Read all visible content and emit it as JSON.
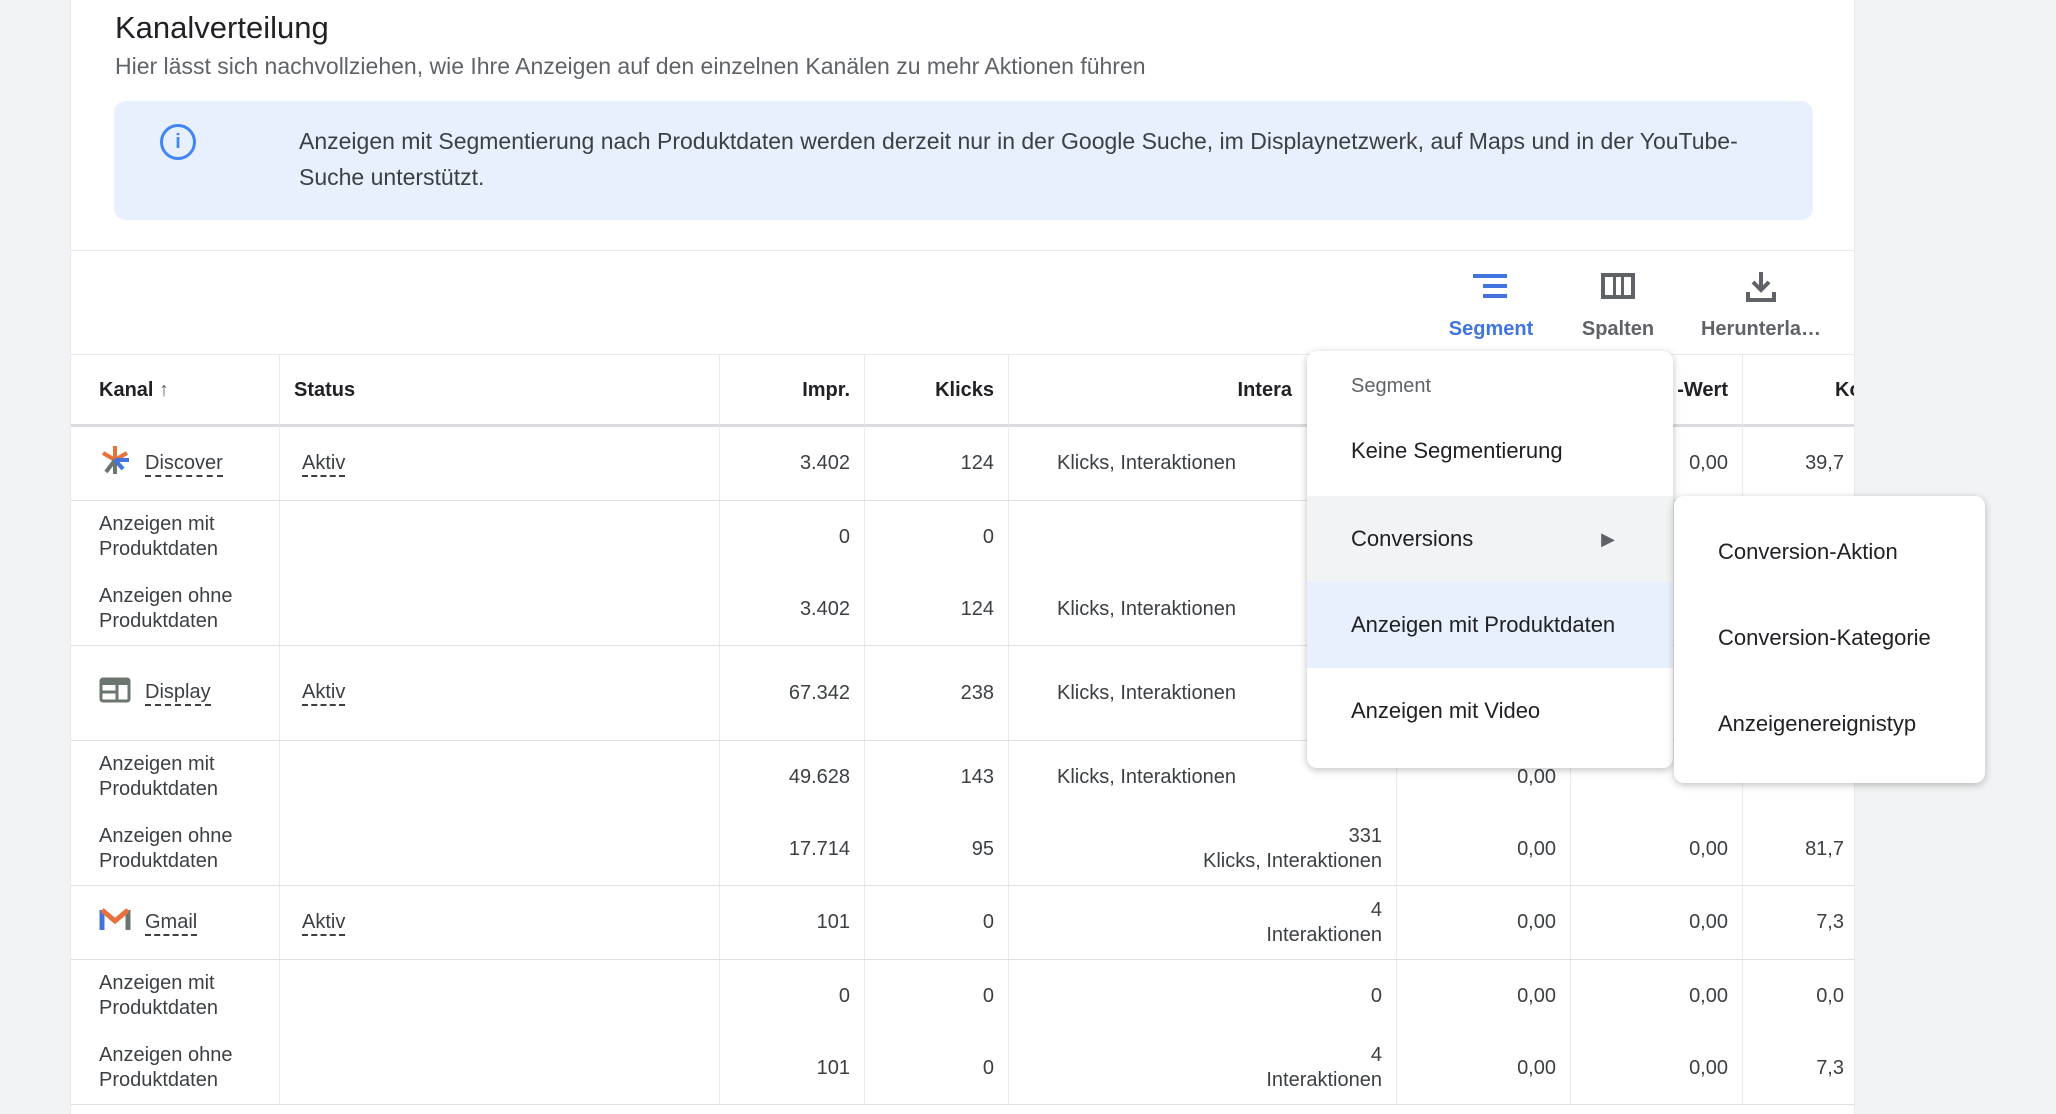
{
  "header": {
    "title": "Kanalverteilung",
    "subtitle": "Hier lässt sich nachvollziehen, wie Ihre Anzeigen auf den einzelnen Kanälen zu mehr Aktionen führen"
  },
  "info": {
    "icon": "info-icon",
    "text": "Anzeigen mit Segmentierung nach Produktdaten werden derzeit nur in der Google Suche, im Displaynetzwerk, auf Maps und in der YouTube-Suche unterstützt."
  },
  "toolbar": {
    "segment": "Segment",
    "columns": "Spalten",
    "download": "Herunterla…",
    "accent": "#4174de"
  },
  "table": {
    "headers": [
      "Kanal",
      "Status",
      "Impr.",
      "Klicks",
      "Intera",
      "",
      "-Wert",
      "Kos"
    ],
    "rows": [
      {
        "channel": "Discover",
        "icon": "discover-icon",
        "status": "Aktiv",
        "impr": "3.402",
        "klicks": "124",
        "inter_num": "",
        "inter_label": "Klicks, Interaktionen",
        "c6": "",
        "c7": "0,00",
        "kos": "39,7",
        "subs": [
          {
            "label": "Anzeigen mit Produktdaten",
            "impr": "0",
            "klicks": "0",
            "inter_num": "",
            "inter_label": "",
            "c6": "",
            "c7": "",
            "kos": ""
          },
          {
            "label": "Anzeigen ohne Produktdaten",
            "impr": "3.402",
            "klicks": "124",
            "inter_num": "",
            "inter_label": "Klicks, Interaktionen",
            "c6": "",
            "c7": "",
            "kos": ""
          }
        ]
      },
      {
        "channel": "Display",
        "icon": "display-icon",
        "status": "Aktiv",
        "impr": "67.342",
        "klicks": "238",
        "inter_num": "",
        "inter_label": "Klicks, Interaktionen",
        "c6": "",
        "c7": "",
        "kos": "",
        "subs": [
          {
            "label": "Anzeigen mit Produktdaten",
            "impr": "49.628",
            "klicks": "143",
            "inter_num": "",
            "inter_label": "Klicks, Interaktionen",
            "c6": "0,00",
            "c7": "",
            "kos": ""
          },
          {
            "label": "Anzeigen ohne Produktdaten",
            "impr": "17.714",
            "klicks": "95",
            "inter_num": "331",
            "inter_label": "Klicks, Interaktionen",
            "c6": "0,00",
            "c7": "0,00",
            "kos": "81,7"
          }
        ]
      },
      {
        "channel": "Gmail",
        "icon": "gmail-icon",
        "status": "Aktiv",
        "impr": "101",
        "klicks": "0",
        "inter_num": "4",
        "inter_label": "Interaktionen",
        "c6": "0,00",
        "c7": "0,00",
        "kos": "7,3",
        "subs": [
          {
            "label": "Anzeigen mit Produktdaten",
            "impr": "0",
            "klicks": "0",
            "inter_num": "0",
            "inter_label": "",
            "c6": "0,00",
            "c7": "0,00",
            "kos": "0,0"
          },
          {
            "label": "Anzeigen ohne Produktdaten",
            "impr": "101",
            "klicks": "0",
            "inter_num": "4",
            "inter_label": "Interaktionen",
            "c6": "0,00",
            "c7": "0,00",
            "kos": "7,3"
          }
        ]
      }
    ]
  },
  "segment_menu": {
    "heading": "Segment",
    "items": [
      {
        "label": "Keine Segmentierung"
      },
      {
        "label": "Conversions",
        "has_submenu": true,
        "hovered": true
      },
      {
        "label": "Anzeigen mit Produktdaten",
        "selected": true
      },
      {
        "label": "Anzeigen mit Video"
      }
    ],
    "submenu": [
      "Conversion-Aktion",
      "Conversion-Kategorie",
      "Anzeigenereignistyp"
    ],
    "selected_color": "#e8f0fe",
    "hover_color": "#f1f3f4"
  }
}
